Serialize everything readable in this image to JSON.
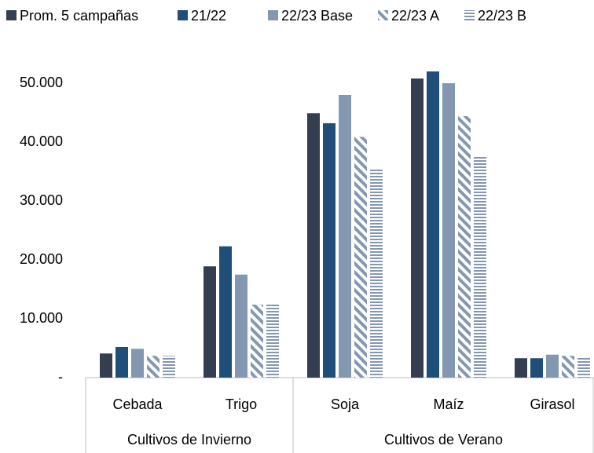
{
  "chart_data": {
    "type": "bar",
    "categories": [
      "Cebada",
      "Trigo",
      "Soja",
      "Maíz",
      "Girasol"
    ],
    "groups": [
      {
        "label": "Cultivos de Invierno",
        "span": 2
      },
      {
        "label": "Cultivos de Verano",
        "span": 3
      }
    ],
    "series": [
      {
        "name": "Prom. 5 campañas",
        "color": "#333f50",
        "pattern": "solid",
        "values": [
          4100,
          18900,
          44900,
          50800,
          3300
        ]
      },
      {
        "name": "21/22",
        "color": "#1f4e79",
        "pattern": "solid",
        "values": [
          5200,
          22300,
          43200,
          52000,
          3300
        ]
      },
      {
        "name": "22/23 Base",
        "color": "#8497b0",
        "pattern": "solid",
        "values": [
          4900,
          17500,
          48000,
          50000,
          3900
        ]
      },
      {
        "name": "22/23 A",
        "color": "#8497b0",
        "pattern": "diagonal",
        "values": [
          3700,
          12400,
          40900,
          44400,
          3700
        ]
      },
      {
        "name": "22/23 B",
        "color": "#8497b0",
        "pattern": "horizontal",
        "values": [
          3700,
          12400,
          35500,
          37600,
          3500
        ]
      }
    ],
    "ylim": [
      0,
      55000
    ],
    "yticks": [
      {
        "value": 0,
        "label": "-"
      },
      {
        "value": 10000,
        "label": "10.000"
      },
      {
        "value": 20000,
        "label": "20.000"
      },
      {
        "value": 30000,
        "label": "30.000"
      },
      {
        "value": 40000,
        "label": "40.000"
      },
      {
        "value": 50000,
        "label": "50.000"
      }
    ],
    "grid": false
  }
}
